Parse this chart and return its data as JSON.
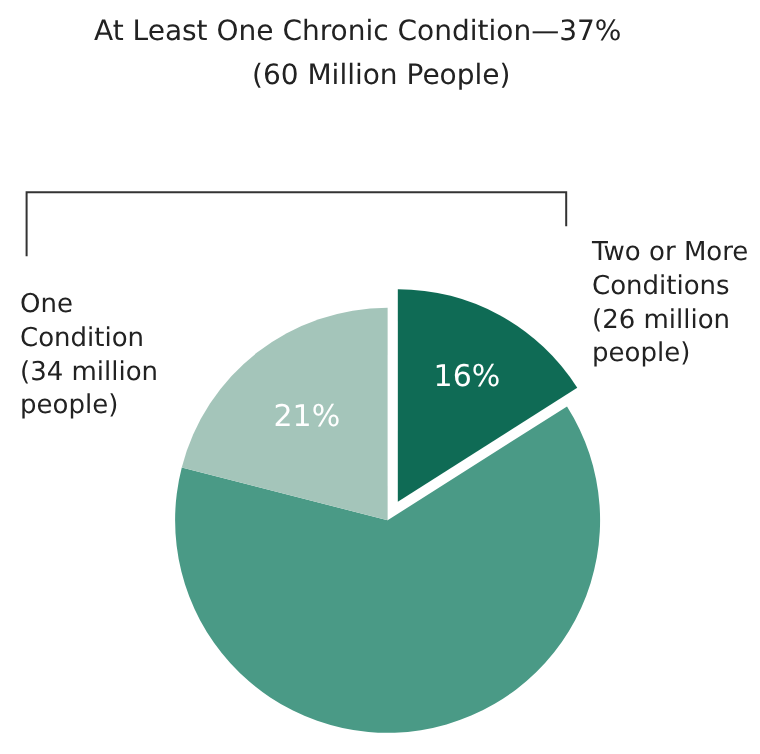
{
  "chart_data": {
    "type": "pie",
    "title": "At Least One Chronic Condition—37%\n(60 Million People)",
    "categories": [
      "Two or More Conditions (26 million people)",
      null,
      "One Condition (34 million people)"
    ],
    "values": [
      16,
      63,
      21
    ],
    "colors": [
      "#0f6b55",
      "#4a9a86",
      "#a4c5ba"
    ],
    "value_labels": [
      "16%",
      null,
      "21%"
    ],
    "legend": false
  }
}
